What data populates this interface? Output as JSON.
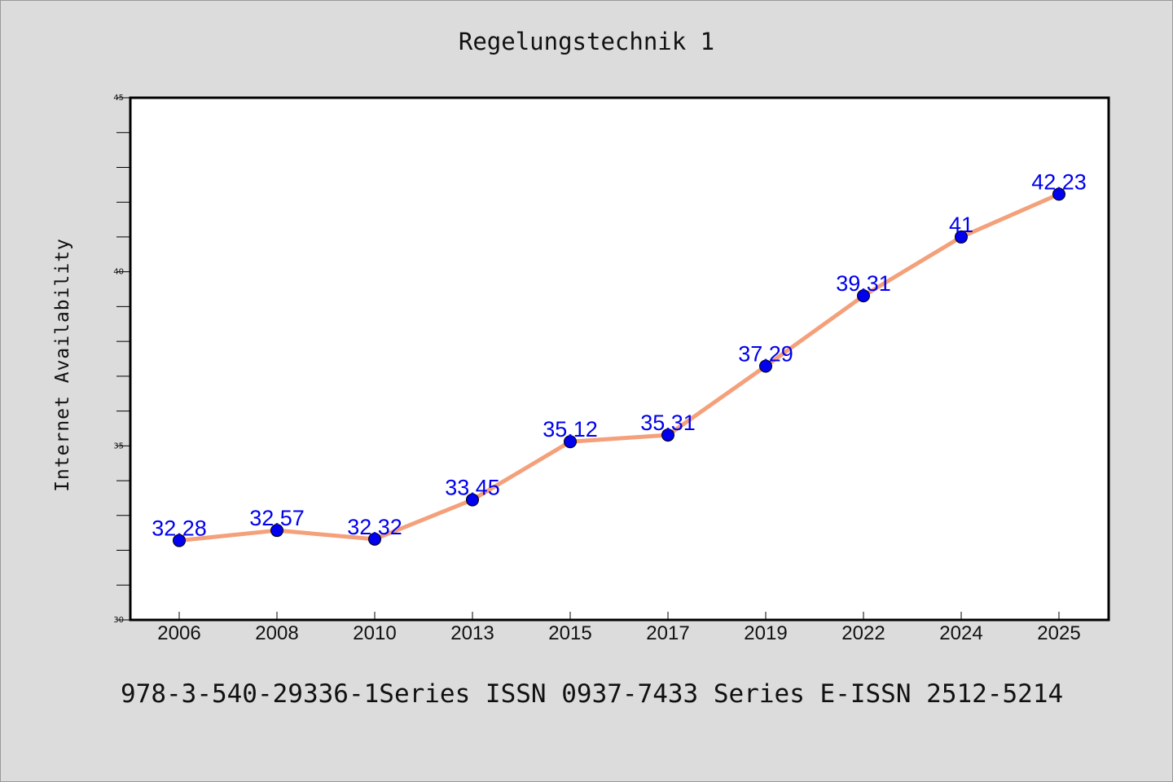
{
  "chart_data": {
    "type": "line",
    "title": "Regelungstechnik 1",
    "xlabel": "",
    "ylabel": "Internet Availability",
    "categories": [
      "2006",
      "2008",
      "2010",
      "2013",
      "2015",
      "2017",
      "2019",
      "2022",
      "2024",
      "2025"
    ],
    "series": [
      {
        "values": [
          32.28,
          32.57,
          32.32,
          33.45,
          35.12,
          35.31,
          37.29,
          39.31,
          41,
          42.23
        ],
        "data_labels": [
          "32.28",
          "32.57",
          "32.32",
          "33.45",
          "35.12",
          "35.31",
          "37.29",
          "39.31",
          "41",
          "42.23"
        ],
        "line_color": "#f4a07a",
        "marker_color": "#0000ee",
        "label_color": "#0000ee"
      }
    ],
    "ylim": [
      30,
      45
    ],
    "y_ticks": [
      "30",
      "35",
      "40",
      "45"
    ],
    "y_minor_step": 1,
    "grid": false,
    "legend": "none"
  },
  "footer_text": "978-3-540-29336-1Series ISSN 0937-7433 Series E-ISSN 2512-5214",
  "colors": {
    "background": "#dcdcdc",
    "plot_background": "#ffffff",
    "axis": "#000000"
  }
}
